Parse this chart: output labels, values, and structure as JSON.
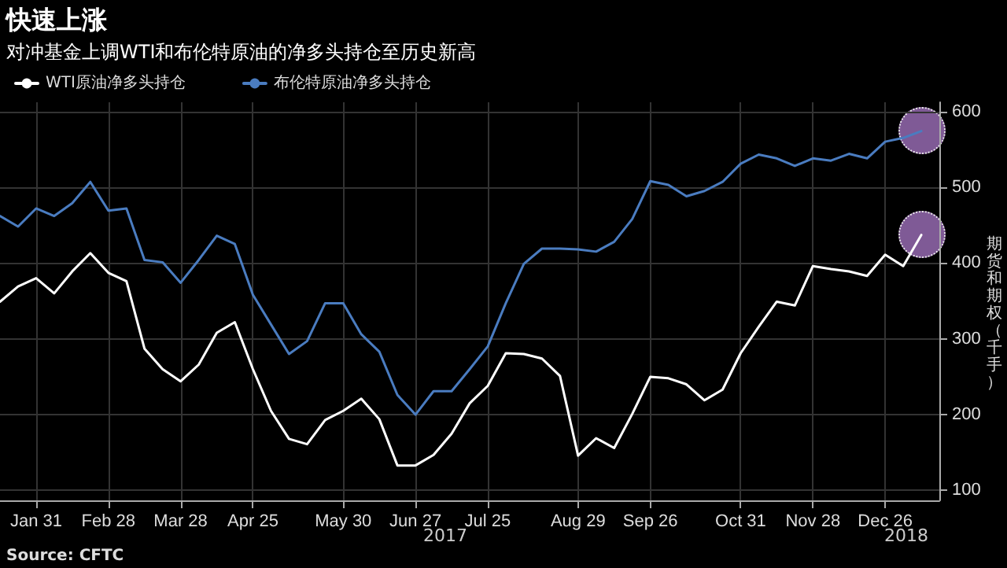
{
  "chart_data": {
    "type": "line",
    "title": "快速上涨",
    "subtitle": "对冲基金上调WTI和布伦特原油的净多头持仓至历史新高",
    "ylabel": "期货和期权（千手）",
    "x": [
      "2017-01-17",
      "2017-01-24",
      "2017-01-31",
      "2017-02-07",
      "2017-02-14",
      "2017-02-21",
      "2017-02-28",
      "2017-03-07",
      "2017-03-14",
      "2017-03-21",
      "2017-03-28",
      "2017-04-04",
      "2017-04-11",
      "2017-04-18",
      "2017-04-25",
      "2017-05-02",
      "2017-05-09",
      "2017-05-16",
      "2017-05-23",
      "2017-05-30",
      "2017-06-06",
      "2017-06-13",
      "2017-06-20",
      "2017-06-27",
      "2017-07-04",
      "2017-07-11",
      "2017-07-18",
      "2017-07-25",
      "2017-08-01",
      "2017-08-08",
      "2017-08-15",
      "2017-08-22",
      "2017-08-29",
      "2017-09-05",
      "2017-09-12",
      "2017-09-19",
      "2017-09-26",
      "2017-10-03",
      "2017-10-10",
      "2017-10-17",
      "2017-10-24",
      "2017-10-31",
      "2017-11-07",
      "2017-11-14",
      "2017-11-21",
      "2017-11-28",
      "2017-12-05",
      "2017-12-12",
      "2017-12-19",
      "2017-12-26",
      "2018-01-02",
      "2018-01-09"
    ],
    "series": [
      {
        "name": "WTI原油净多头持仓",
        "color": "#ffffff",
        "values": [
          349,
          369,
          380,
          360,
          389,
          413,
          387,
          376,
          287,
          260,
          244,
          266,
          308,
          322,
          260,
          205,
          168,
          161,
          193,
          205,
          221,
          194,
          133,
          133,
          147,
          175,
          215,
          238,
          281,
          280,
          274,
          251,
          146,
          169,
          156,
          201,
          250,
          248,
          240,
          219,
          233,
          281,
          316,
          349,
          344,
          396,
          392,
          389,
          383,
          411,
          396,
          437
        ]
      },
      {
        "name": "布伦特原油净多头持仓",
        "color": "#4a7cc0",
        "values": [
          462,
          448,
          472,
          462,
          479,
          507,
          469,
          472,
          404,
          401,
          374,
          404,
          436,
          425,
          358,
          319,
          280,
          297,
          347,
          347,
          306,
          283,
          226,
          200,
          231,
          231,
          260,
          290,
          347,
          399,
          419,
          419,
          418,
          415,
          428,
          458,
          508,
          503,
          488,
          495,
          507,
          531,
          543,
          538,
          528,
          538,
          535,
          544,
          538,
          560,
          565,
          574
        ]
      }
    ],
    "xlim": [
      "2017-01-17",
      "2018-01-16"
    ],
    "xticks": [
      {
        "value": "2017-01-31",
        "label": "Jan 31"
      },
      {
        "value": "2017-02-28",
        "label": "Feb 28"
      },
      {
        "value": "2017-03-28",
        "label": "Mar 28"
      },
      {
        "value": "2017-04-25",
        "label": "Apr 25"
      },
      {
        "value": "2017-05-30",
        "label": "May 30"
      },
      {
        "value": "2017-06-27",
        "label": "Jun 27"
      },
      {
        "value": "2017-07-25",
        "label": "Jul 25"
      },
      {
        "value": "2017-08-29",
        "label": "Aug 29"
      },
      {
        "value": "2017-09-26",
        "label": "Sep 26"
      },
      {
        "value": "2017-10-31",
        "label": "Oct 31"
      },
      {
        "value": "2017-11-28",
        "label": "Nov 28"
      },
      {
        "value": "2017-12-26",
        "label": "Dec 26"
      }
    ],
    "ylim": [
      87,
      612
    ],
    "yticks": [
      100,
      200,
      300,
      400,
      500,
      600
    ],
    "grid": true,
    "legend": "top left",
    "marker": "none",
    "line_style": "solid",
    "annotations": [
      "2017",
      "2018",
      "Source: CFTC"
    ]
  }
}
